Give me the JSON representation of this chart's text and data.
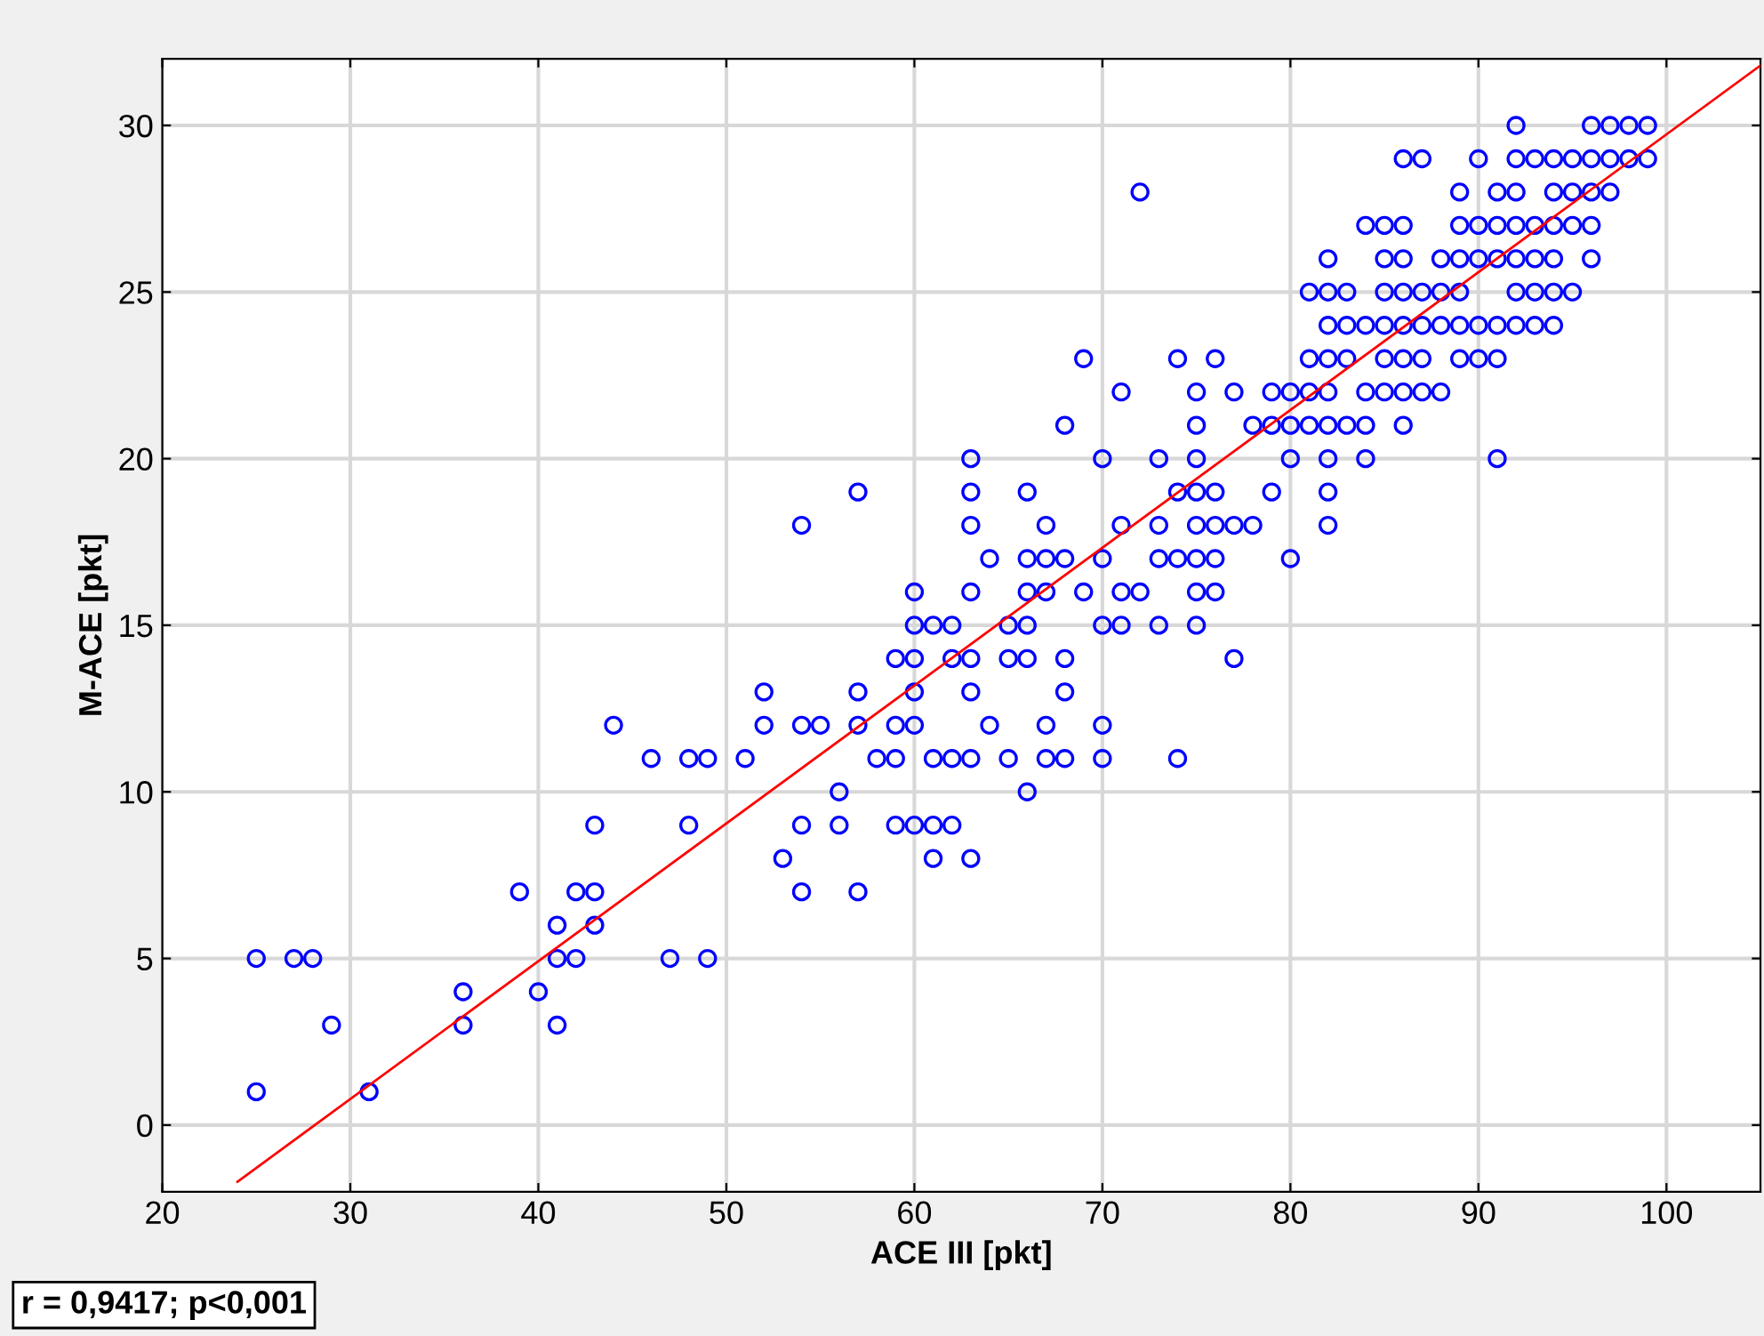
{
  "chart_data": {
    "type": "scatter",
    "xlabel": "ACE III [pkt]",
    "ylabel": "M-ACE [pkt]",
    "xlim": [
      20,
      105
    ],
    "ylim": [
      -2,
      32
    ],
    "xticks": [
      20,
      30,
      40,
      50,
      60,
      70,
      80,
      90,
      100
    ],
    "yticks": [
      0,
      5,
      10,
      15,
      20,
      25,
      30
    ],
    "grid": true,
    "marker": "circle",
    "annotations": [
      "r = 0,9417; p<0,001"
    ],
    "series": [
      {
        "color": "#0000ff",
        "x": [
          92,
          96,
          97,
          98,
          99,
          86,
          87,
          90,
          92,
          93,
          94,
          95,
          96,
          97,
          98,
          99,
          72,
          89,
          91,
          92,
          94,
          95,
          96,
          97,
          84,
          85,
          86,
          89,
          90,
          91,
          92,
          93,
          94,
          95,
          96,
          82,
          85,
          86,
          88,
          89,
          90,
          91,
          92,
          93,
          94,
          96,
          81,
          82,
          83,
          85,
          86,
          87,
          88,
          89,
          92,
          93,
          94,
          95,
          82,
          83,
          84,
          85,
          86,
          87,
          88,
          89,
          90,
          91,
          92,
          93,
          94,
          69,
          74,
          76,
          81,
          82,
          83,
          85,
          86,
          87,
          89,
          90,
          91,
          71,
          75,
          77,
          79,
          80,
          81,
          82,
          84,
          85,
          86,
          87,
          88,
          68,
          75,
          78,
          79,
          80,
          81,
          82,
          83,
          84,
          86,
          63,
          70,
          73,
          75,
          80,
          82,
          84,
          91,
          57,
          63,
          66,
          74,
          75,
          76,
          79,
          82,
          54,
          63,
          67,
          71,
          73,
          75,
          76,
          77,
          78,
          82,
          64,
          66,
          67,
          68,
          70,
          73,
          74,
          75,
          76,
          80,
          60,
          63,
          66,
          67,
          69,
          71,
          72,
          75,
          76,
          60,
          61,
          62,
          65,
          66,
          70,
          71,
          73,
          75,
          59,
          60,
          62,
          63,
          65,
          66,
          68,
          77,
          52,
          57,
          60,
          63,
          68,
          44,
          52,
          54,
          55,
          57,
          59,
          60,
          64,
          67,
          70,
          46,
          48,
          49,
          51,
          58,
          59,
          61,
          62,
          63,
          65,
          67,
          68,
          70,
          74,
          56,
          66,
          43,
          48,
          54,
          56,
          59,
          60,
          61,
          62,
          53,
          61,
          63,
          39,
          42,
          43,
          54,
          57,
          41,
          43,
          25,
          27,
          28,
          41,
          42,
          47,
          49,
          36,
          40,
          29,
          36,
          41,
          25,
          31
        ],
        "values": [
          30,
          30,
          30,
          30,
          30,
          29,
          29,
          29,
          29,
          29,
          29,
          29,
          29,
          29,
          29,
          29,
          28,
          28,
          28,
          28,
          28,
          28,
          28,
          28,
          27,
          27,
          27,
          27,
          27,
          27,
          27,
          27,
          27,
          27,
          27,
          26,
          26,
          26,
          26,
          26,
          26,
          26,
          26,
          26,
          26,
          26,
          25,
          25,
          25,
          25,
          25,
          25,
          25,
          25,
          25,
          25,
          25,
          25,
          24,
          24,
          24,
          24,
          24,
          24,
          24,
          24,
          24,
          24,
          24,
          24,
          24,
          23,
          23,
          23,
          23,
          23,
          23,
          23,
          23,
          23,
          23,
          23,
          23,
          22,
          22,
          22,
          22,
          22,
          22,
          22,
          22,
          22,
          22,
          22,
          22,
          21,
          21,
          21,
          21,
          21,
          21,
          21,
          21,
          21,
          21,
          20,
          20,
          20,
          20,
          20,
          20,
          20,
          20,
          19,
          19,
          19,
          19,
          19,
          19,
          19,
          19,
          18,
          18,
          18,
          18,
          18,
          18,
          18,
          18,
          18,
          18,
          17,
          17,
          17,
          17,
          17,
          17,
          17,
          17,
          17,
          17,
          16,
          16,
          16,
          16,
          16,
          16,
          16,
          16,
          16,
          15,
          15,
          15,
          15,
          15,
          15,
          15,
          15,
          15,
          14,
          14,
          14,
          14,
          14,
          14,
          14,
          14,
          13,
          13,
          13,
          13,
          13,
          12,
          12,
          12,
          12,
          12,
          12,
          12,
          12,
          12,
          12,
          11,
          11,
          11,
          11,
          11,
          11,
          11,
          11,
          11,
          11,
          11,
          11,
          11,
          11,
          10,
          10,
          9,
          9,
          9,
          9,
          9,
          9,
          9,
          9,
          8,
          8,
          8,
          7,
          7,
          7,
          7,
          7,
          6,
          6,
          5,
          5,
          5,
          5,
          5,
          5,
          5,
          4,
          4,
          3,
          3,
          3,
          1,
          1
        ]
      },
      {
        "type": "line",
        "color": "#ff0000",
        "marker": "none",
        "x": [
          24,
          105
        ],
        "values": [
          -1.7,
          31.8
        ]
      }
    ]
  }
}
